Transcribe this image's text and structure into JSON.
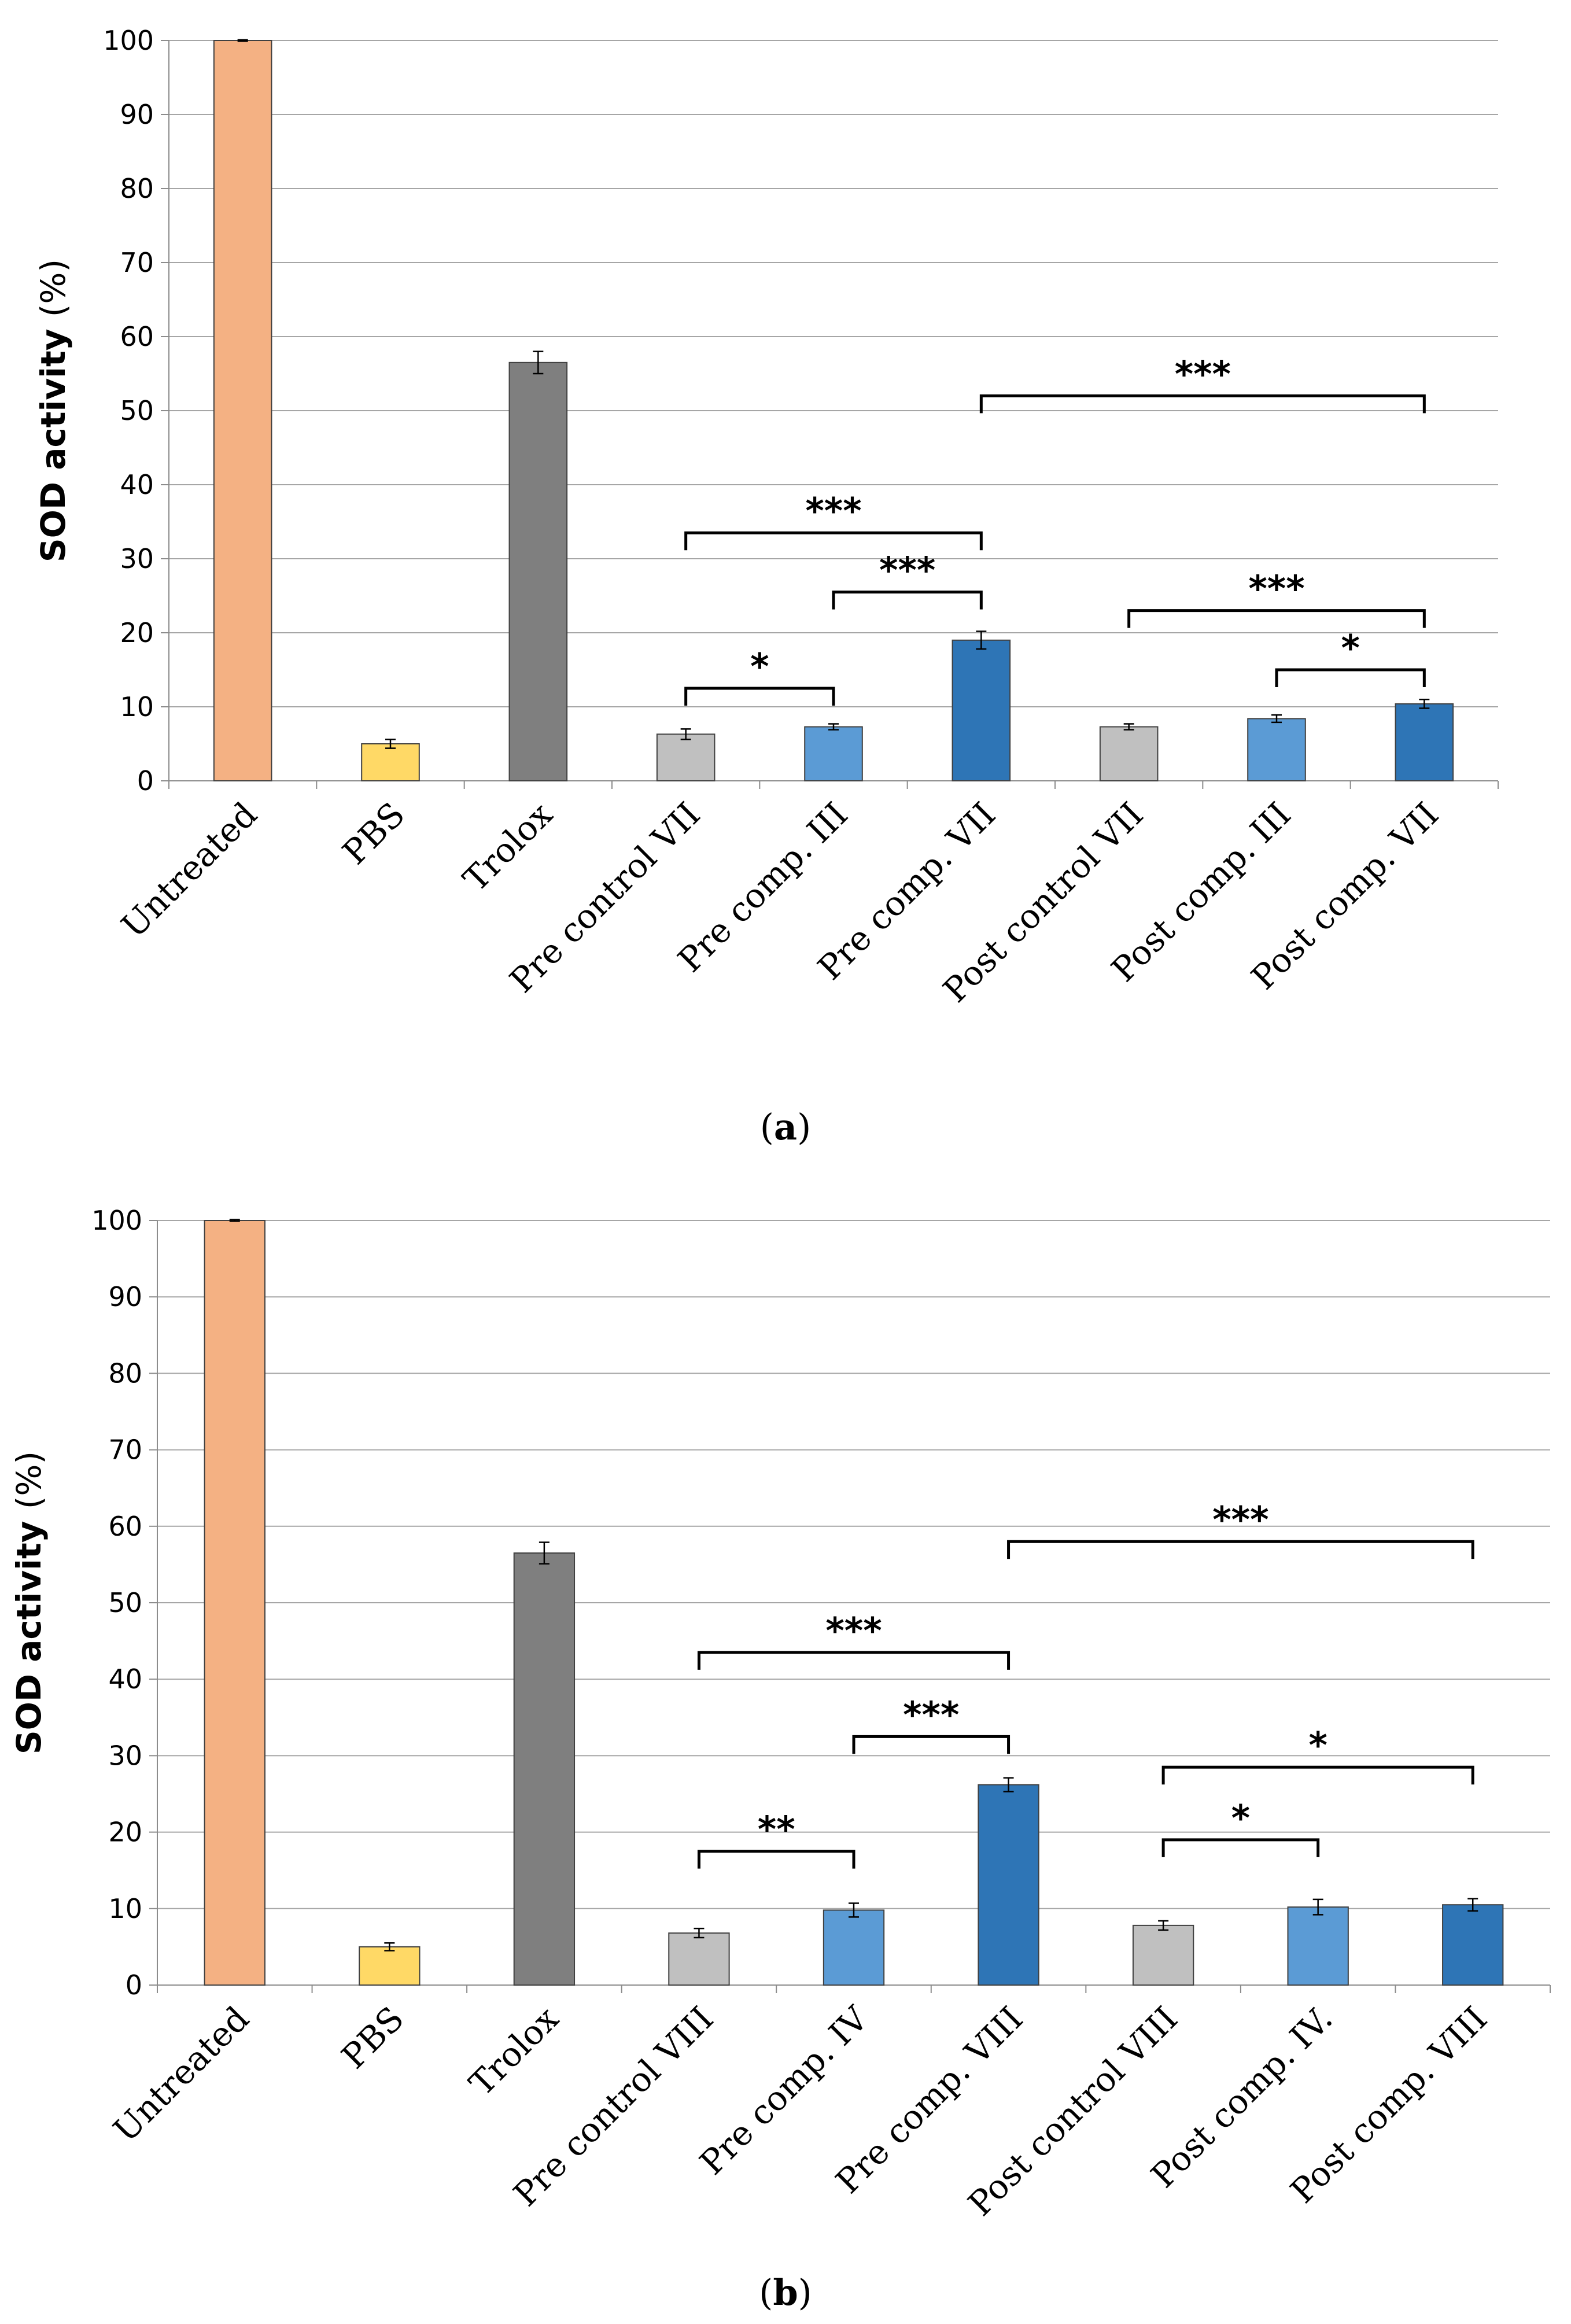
{
  "chart_data": [
    {
      "type": "bar",
      "panel_label": "(a)",
      "ylabel": "SOD activity (%)",
      "ylim": [
        0,
        100
      ],
      "ytick_step": 10,
      "yticks": [
        "0",
        "10",
        "20",
        "30",
        "40",
        "50",
        "60",
        "70",
        "80",
        "90",
        "100"
      ],
      "grid": true,
      "categories": [
        "Untreated",
        "PBS",
        "Trolox",
        "Pre control VII",
        "Pre comp. III",
        "Pre comp. VII",
        "Post control VII",
        "Post comp. III",
        "Post comp. VII"
      ],
      "values": [
        100,
        5,
        56.5,
        6.3,
        7.3,
        19,
        7.3,
        8.4,
        10.4
      ],
      "errors": [
        0.1,
        0.6,
        1.5,
        0.7,
        0.4,
        1.2,
        0.4,
        0.5,
        0.6
      ],
      "colors": [
        "#f4b183",
        "#ffd966",
        "#7f7f7f",
        "#c0c0c0",
        "#5b9bd5",
        "#2e75b6",
        "#c0c0c0",
        "#5b9bd5",
        "#2e75b6"
      ],
      "significance": [
        {
          "from": 3,
          "to": 4,
          "y": 12.5,
          "label": "*"
        },
        {
          "from": 4,
          "to": 5,
          "y": 25.5,
          "label": "***"
        },
        {
          "from": 3,
          "to": 5,
          "y": 33.5,
          "label": "***"
        },
        {
          "from": 7,
          "to": 8,
          "y": 15,
          "label": "*"
        },
        {
          "from": 6,
          "to": 8,
          "y": 23,
          "label": "***"
        },
        {
          "from": 5,
          "to": 8,
          "y": 52,
          "label": "***"
        }
      ]
    },
    {
      "type": "bar",
      "panel_label": "(b)",
      "ylabel": "SOD activity (%)",
      "ylim": [
        0,
        100
      ],
      "ytick_step": 10,
      "yticks": [
        "0",
        "10",
        "20",
        "30",
        "40",
        "50",
        "60",
        "70",
        "80",
        "90",
        "100"
      ],
      "grid": true,
      "categories": [
        "Untreated",
        "PBS",
        "Trolox",
        "Pre control VIII",
        "Pre comp. IV",
        "Pre comp. VIII",
        "Post control VIII",
        "Post comp. IV.",
        "Post comp. VIII"
      ],
      "values": [
        100,
        5,
        56.5,
        6.8,
        9.8,
        26.2,
        7.8,
        10.2,
        10.5
      ],
      "errors": [
        0.1,
        0.5,
        1.4,
        0.6,
        0.9,
        0.9,
        0.6,
        1.0,
        0.8
      ],
      "colors": [
        "#f4b183",
        "#ffd966",
        "#7f7f7f",
        "#c0c0c0",
        "#5b9bd5",
        "#2e75b6",
        "#c0c0c0",
        "#5b9bd5",
        "#2e75b6"
      ],
      "significance": [
        {
          "from": 3,
          "to": 4,
          "y": 17.5,
          "label": "**"
        },
        {
          "from": 4,
          "to": 5,
          "y": 32.5,
          "label": "***"
        },
        {
          "from": 3,
          "to": 5,
          "y": 43.5,
          "label": "***"
        },
        {
          "from": 6,
          "to": 7,
          "y": 19,
          "label": "*"
        },
        {
          "from": 6,
          "to": 8,
          "y": 28.5,
          "label": "*"
        },
        {
          "from": 5,
          "to": 8,
          "y": 58,
          "label": "***"
        }
      ]
    }
  ]
}
